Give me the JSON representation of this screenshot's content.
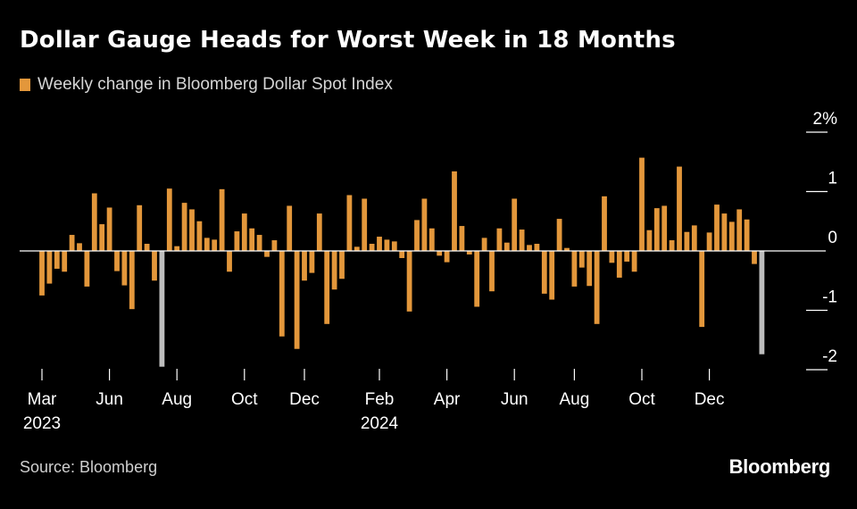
{
  "title": "Dollar Gauge Heads for Worst Week in 18 Months",
  "legend_label": "Weekly change in Bloomberg Dollar Spot Index",
  "source": "Source: Bloomberg",
  "brand": "Bloomberg",
  "colors": {
    "bar": "#e3973b",
    "highlight": "#bdbdbd",
    "background": "#000000",
    "axis": "#ffffff"
  },
  "chart_data": {
    "type": "bar",
    "title": "Dollar Gauge Heads for Worst Week in 18 Months",
    "series": [
      {
        "name": "Weekly change in Bloomberg Dollar Spot Index",
        "values": [
          -0.75,
          -0.55,
          -0.3,
          -0.35,
          0.27,
          0.13,
          -0.6,
          0.97,
          0.45,
          0.73,
          -0.34,
          -0.58,
          -0.98,
          0.77,
          0.12,
          -0.5,
          -1.95,
          1.05,
          0.08,
          0.81,
          0.7,
          0.5,
          0.22,
          0.19,
          1.04,
          -0.35,
          0.33,
          0.63,
          0.38,
          0.27,
          -0.1,
          0.18,
          -1.44,
          0.76,
          -1.65,
          -0.5,
          -0.37,
          0.63,
          -1.23,
          -0.65,
          -0.47,
          0.94,
          0.07,
          0.88,
          0.12,
          0.24,
          0.19,
          0.16,
          -0.12,
          -1.02,
          0.52,
          0.88,
          0.38,
          -0.08,
          -0.19,
          1.34,
          0.42,
          -0.06,
          -0.94,
          0.22,
          -0.68,
          0.38,
          0.14,
          0.88,
          0.36,
          0.1,
          0.12,
          -0.72,
          -0.82,
          0.54,
          0.05,
          -0.6,
          -0.28,
          -0.59,
          -1.23,
          0.92,
          -0.2,
          -0.45,
          -0.18,
          -0.35,
          1.57,
          0.35,
          0.72,
          0.76,
          0.18,
          1.42,
          0.32,
          0.43,
          -1.28,
          0.31,
          0.78,
          0.63,
          0.49,
          0.7,
          0.53,
          -0.22,
          -1.74
        ]
      }
    ],
    "highlight_indices": [
      16,
      96
    ],
    "ylim": [
      -2,
      2
    ],
    "y_ticks": [
      2,
      1,
      0,
      -1,
      -2
    ],
    "y_tick_labels": [
      "2%",
      "1",
      "0",
      "-1",
      "-2"
    ],
    "x_ticks": [
      {
        "index": 0,
        "label": "Mar",
        "year": "2023"
      },
      {
        "index": 9,
        "label": "Jun"
      },
      {
        "index": 18,
        "label": "Aug"
      },
      {
        "index": 27,
        "label": "Oct"
      },
      {
        "index": 35,
        "label": "Dec"
      },
      {
        "index": 45,
        "label": "Feb",
        "year": "2024"
      },
      {
        "index": 54,
        "label": "Apr"
      },
      {
        "index": 63,
        "label": "Jun"
      },
      {
        "index": 71,
        "label": "Aug"
      },
      {
        "index": 80,
        "label": "Oct"
      },
      {
        "index": 89,
        "label": "Dec"
      }
    ],
    "xlabel": "",
    "ylabel": ""
  }
}
